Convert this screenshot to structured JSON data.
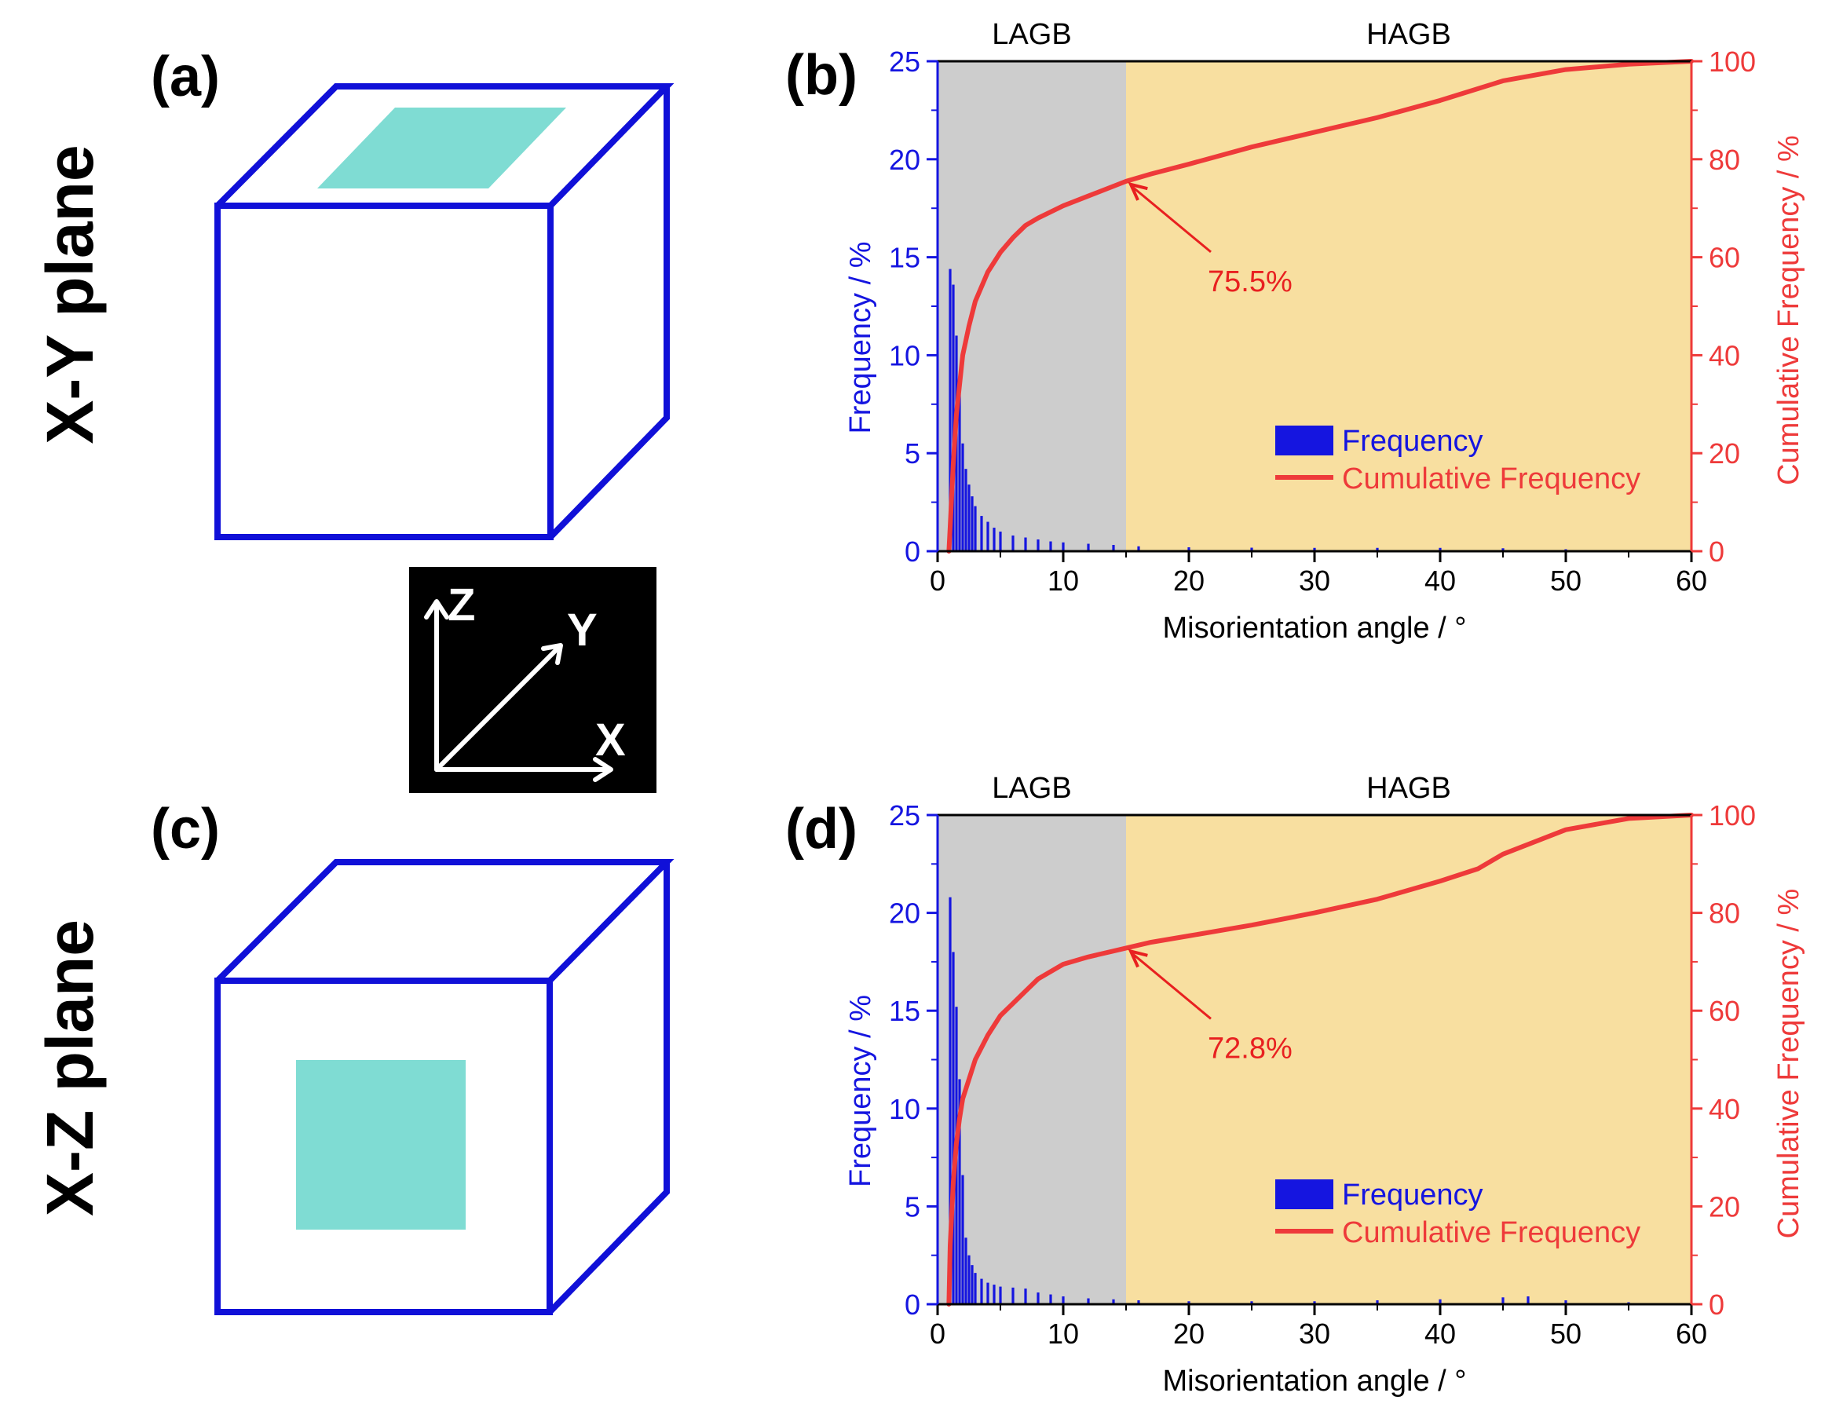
{
  "colors": {
    "cube_edge": "#1010d8",
    "plane_fill": "#7fdcd3",
    "frequency_blue": "#1515e0",
    "cumulative_red": "#ee3a3a",
    "lagb_bg": "#cdcdcd",
    "hagb_bg": "#f8dfa0",
    "axis_black": "#000000",
    "annotation_red": "#e82020"
  },
  "left_panels": {
    "a": {
      "label": "(a)",
      "plane_title": "X-Y plane"
    },
    "c": {
      "label": "(c)",
      "plane_title": "X-Z plane"
    },
    "axes_icon": {
      "z": "Z",
      "y": "Y",
      "x": "X"
    }
  },
  "chart_data": [
    {
      "panel": "(b)",
      "type": "bar",
      "region_labels": [
        "LAGB",
        "HAGB"
      ],
      "region_split": 15,
      "xlabel": "Misorientation angle / °",
      "ylabel_left": "Frequency / %",
      "ylabel_right": "Cumulative Frequency / %",
      "xlim": [
        0,
        60
      ],
      "ylim_left": [
        0,
        25
      ],
      "ylim_right": [
        0,
        100
      ],
      "xticks": [
        0,
        10,
        20,
        30,
        40,
        50,
        60
      ],
      "yticks_left": [
        0,
        5,
        10,
        15,
        20,
        25
      ],
      "yticks_right": [
        0,
        20,
        40,
        60,
        80,
        100
      ],
      "legend": [
        "Frequency",
        "Cumulative Frequency"
      ],
      "annotation": {
        "text": "75.5%",
        "x": 15,
        "y": 75.5
      },
      "frequency": {
        "x": [
          1.0,
          1.25,
          1.5,
          1.75,
          2.0,
          2.25,
          2.5,
          2.75,
          3.0,
          3.5,
          4.0,
          4.5,
          5.0,
          6.0,
          7.0,
          8.0,
          9.0,
          10.0,
          12.0,
          14.0,
          16.0,
          20.0,
          25.0,
          30.0,
          35.0,
          40.0,
          45.0,
          50.0,
          55.0
        ],
        "y": [
          14.4,
          13.6,
          11.0,
          8.0,
          5.5,
          4.2,
          3.4,
          2.8,
          2.3,
          1.8,
          1.5,
          1.2,
          1.0,
          0.8,
          0.7,
          0.6,
          0.5,
          0.45,
          0.38,
          0.32,
          0.25,
          0.2,
          0.18,
          0.17,
          0.17,
          0.17,
          0.15,
          0.1,
          0.05
        ]
      },
      "cumulative": {
        "x": [
          0.9,
          1.0,
          1.25,
          1.5,
          1.75,
          2.0,
          2.5,
          3.0,
          4.0,
          5.0,
          6.0,
          7.0,
          8.0,
          10.0,
          12.0,
          14.0,
          15.0,
          17.0,
          20.0,
          25.0,
          30.0,
          35.0,
          40.0,
          45.0,
          50.0,
          55.0,
          60.0
        ],
        "y": [
          0,
          5,
          18,
          28,
          34,
          40,
          46,
          51,
          57,
          61,
          64,
          66.5,
          68,
          70.5,
          72.5,
          74.5,
          75.5,
          77,
          79,
          82.5,
          85.5,
          88.5,
          92,
          96,
          98.3,
          99.4,
          100
        ]
      }
    },
    {
      "panel": "(d)",
      "type": "bar",
      "region_labels": [
        "LAGB",
        "HAGB"
      ],
      "region_split": 15,
      "xlabel": "Misorientation angle / °",
      "ylabel_left": "Frequency / %",
      "ylabel_right": "Cumulative Frequency / %",
      "xlim": [
        0,
        60
      ],
      "ylim_left": [
        0,
        25
      ],
      "ylim_right": [
        0,
        100
      ],
      "xticks": [
        0,
        10,
        20,
        30,
        40,
        50,
        60
      ],
      "yticks_left": [
        0,
        5,
        10,
        15,
        20,
        25
      ],
      "yticks_right": [
        0,
        20,
        40,
        60,
        80,
        100
      ],
      "legend": [
        "Frequency",
        "Cumulative Frequency"
      ],
      "annotation": {
        "text": "72.8%",
        "x": 15,
        "y": 72.8
      },
      "frequency": {
        "x": [
          1.0,
          1.25,
          1.5,
          1.75,
          2.0,
          2.25,
          2.5,
          2.75,
          3.0,
          3.5,
          4.0,
          4.5,
          5.0,
          6.0,
          7.0,
          8.0,
          9.0,
          10.0,
          12.0,
          14.0,
          16.0,
          20.0,
          25.0,
          30.0,
          35.0,
          40.0,
          45.0,
          47.0,
          50.0,
          55.0
        ],
        "y": [
          20.8,
          18.0,
          15.2,
          11.5,
          6.6,
          3.4,
          2.5,
          2.0,
          1.6,
          1.3,
          1.1,
          1.0,
          0.9,
          0.85,
          0.8,
          0.6,
          0.5,
          0.4,
          0.3,
          0.25,
          0.2,
          0.15,
          0.15,
          0.15,
          0.2,
          0.25,
          0.35,
          0.4,
          0.2,
          0.1
        ]
      },
      "cumulative": {
        "x": [
          0.9,
          1.0,
          1.25,
          1.5,
          1.75,
          2.0,
          2.5,
          3.0,
          4.0,
          5.0,
          6.0,
          7.0,
          8.0,
          10.0,
          12.0,
          14.0,
          15.0,
          17.0,
          20.0,
          25.0,
          30.0,
          35.0,
          40.0,
          43.0,
          45.0,
          50.0,
          55.0,
          60.0
        ],
        "y": [
          0,
          12,
          25,
          33,
          38,
          42,
          46,
          50,
          55,
          59,
          61.5,
          64,
          66.5,
          69.5,
          71,
          72.2,
          72.8,
          74,
          75.3,
          77.5,
          80,
          82.8,
          86.5,
          89,
          92,
          97,
          99.3,
          100
        ]
      }
    }
  ]
}
